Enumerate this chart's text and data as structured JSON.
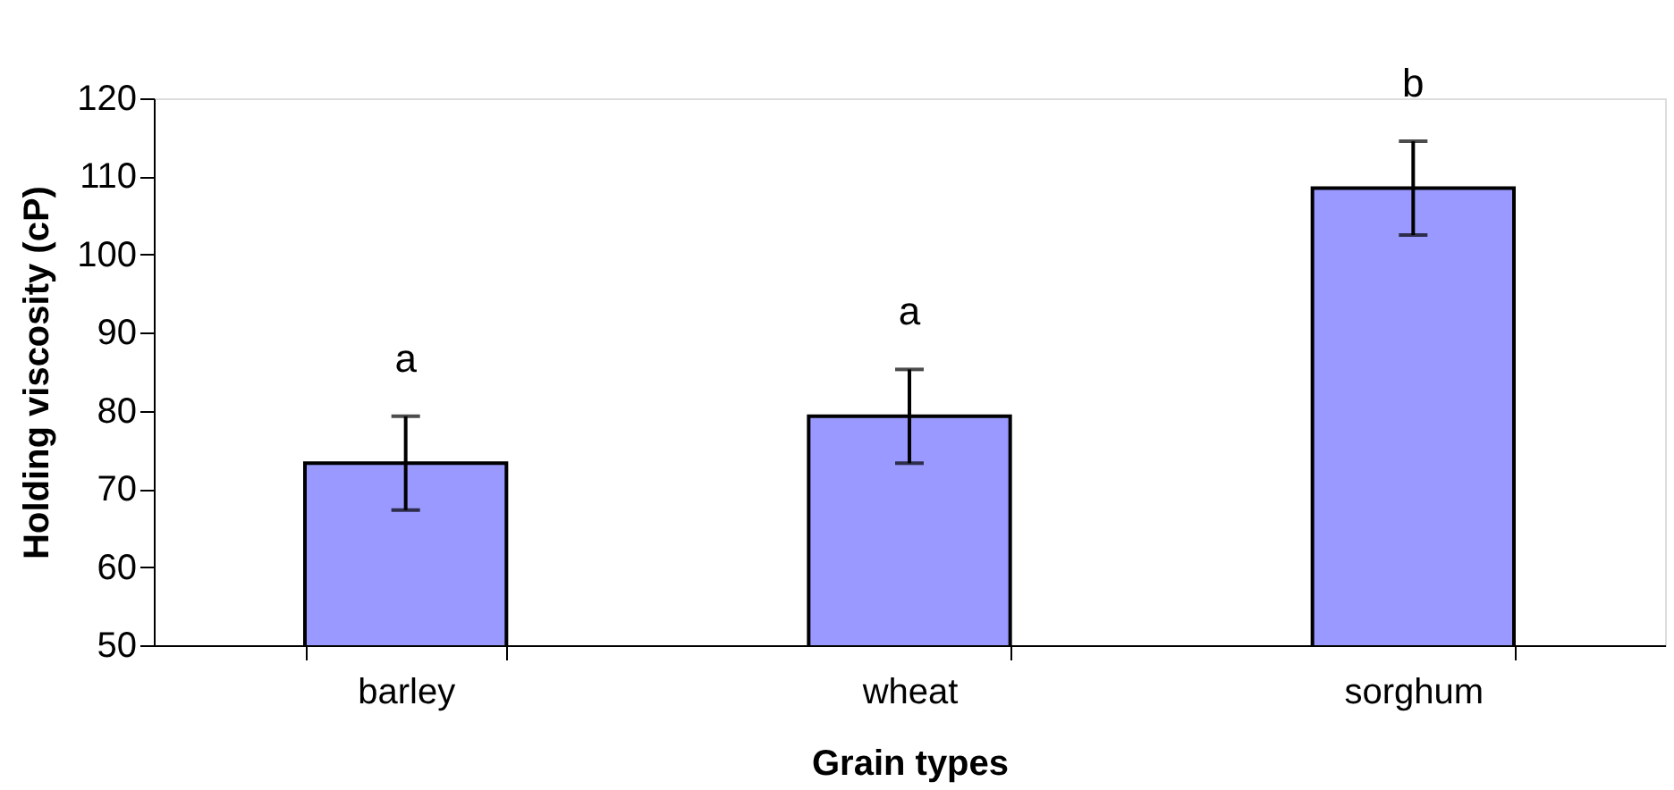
{
  "chart_data": {
    "type": "bar",
    "xlabel": "Grain types",
    "ylabel": "Holding viscosity (cP)",
    "categories": [
      "barley",
      "wheat",
      "sorghum"
    ],
    "values": [
      73.3,
      79.3,
      108.5
    ],
    "errors": [
      6,
      6,
      6
    ],
    "color": "#9999ff",
    "ylim": [
      50,
      120
    ],
    "yticks": [
      50,
      60,
      70,
      80,
      90,
      100,
      110,
      120
    ],
    "grid": false,
    "annotations": [
      "a",
      "a",
      "b"
    ]
  }
}
